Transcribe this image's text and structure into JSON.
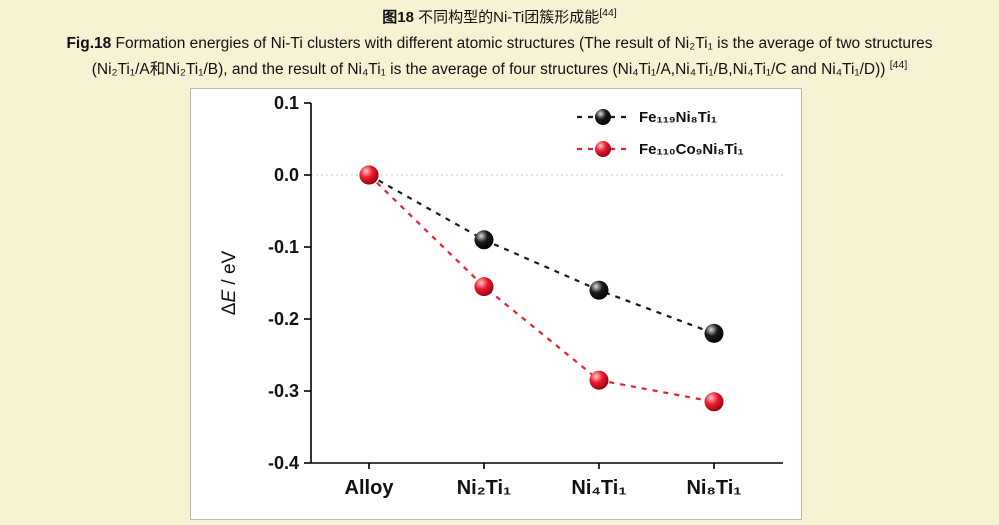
{
  "colors": {
    "page_background": "#f6f2d2",
    "panel_background": "#ffffff",
    "panel_border": "#b9b9b0",
    "text": "#111111",
    "zero_line": "#c9c9c9",
    "axis": "#000000"
  },
  "caption": {
    "line1_bold": "图18",
    "line1_text": " 不同构型的Ni-Ti团簇形成能",
    "line1_sup": "[44]",
    "line2_bold": "Fig.18",
    "line2_text": " Formation energies of Ni-Ti clusters with different atomic structures (The result of Ni₂Ti₁ is the average of two structures",
    "line3_text": "(Ni₂Ti₁/A和Ni₂Ti₁/B), and the result of Ni₄Ti₁ is the average of four structures (Ni₄Ti₁/A,Ni₄Ti₁/B,Ni₄Ti₁/C and Ni₄Ti₁/D)) ",
    "line3_sup": "[44]"
  },
  "chart_data": {
    "type": "line",
    "title": "",
    "categories": [
      "Alloy",
      "Ni₂Ti₁",
      "Ni₄Ti₁",
      "Ni₈Ti₁"
    ],
    "series": [
      {
        "name": "Fe₁₁₉Ni₈Ti₁",
        "color": "#1a1a1a",
        "highlight": "#dddddd",
        "shade": "#000000",
        "values": [
          0.0,
          -0.09,
          -0.16,
          -0.22
        ]
      },
      {
        "name": "Fe₁₁₀Co₉Ni₈Ti₁",
        "color": "#ee1c2e",
        "highlight": "#ffc9c9",
        "shade": "#8e0010",
        "values": [
          0.0,
          -0.155,
          -0.285,
          -0.315
        ]
      }
    ],
    "xlabel": "",
    "ylabel": "ΔE / eV",
    "ylim": [
      -0.4,
      0.1
    ],
    "yticks": [
      "0.1",
      "0.0",
      "-0.1",
      "-0.2",
      "-0.3",
      "-0.4"
    ],
    "zero_line": true,
    "grid": false,
    "legend_position": "top-right",
    "line_style": "dashed",
    "marker": "sphere"
  }
}
